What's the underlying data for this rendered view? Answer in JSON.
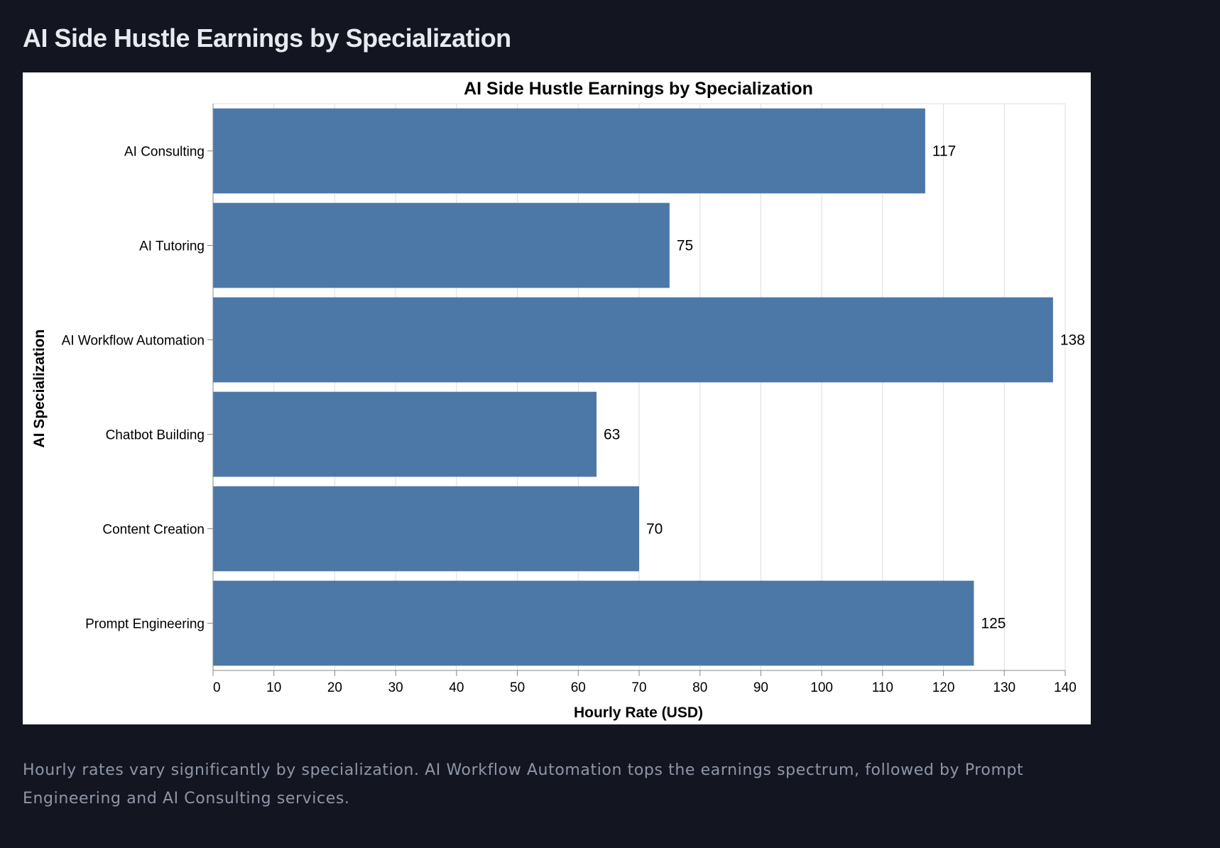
{
  "page": {
    "title": "AI Side Hustle Earnings by Specialization",
    "caption": "Hourly rates vary significantly by specialization. AI Workflow Automation tops the earnings spectrum, followed by Prompt Engineering and AI Consulting services."
  },
  "chart_data": {
    "type": "bar",
    "orientation": "horizontal",
    "title": "AI Side Hustle Earnings by Specialization",
    "xlabel": "Hourly Rate (USD)",
    "ylabel": "AI Specialization",
    "categories": [
      "AI Consulting",
      "AI Tutoring",
      "AI Workflow Automation",
      "Chatbot Building",
      "Content Creation",
      "Prompt Engineering"
    ],
    "values": [
      117,
      75,
      138,
      63,
      70,
      125
    ],
    "value_labels": [
      "117",
      "75",
      "138",
      "63",
      "70",
      "125"
    ],
    "xlim": [
      0,
      140
    ],
    "xticks": [
      0,
      10,
      20,
      30,
      40,
      50,
      60,
      70,
      80,
      90,
      100,
      110,
      120,
      130,
      140
    ],
    "grid": true,
    "legend": "none",
    "colors": {
      "bar": "#4c78a8",
      "grid": "#dddddd",
      "axis": "#888888",
      "text": "#000000"
    }
  }
}
